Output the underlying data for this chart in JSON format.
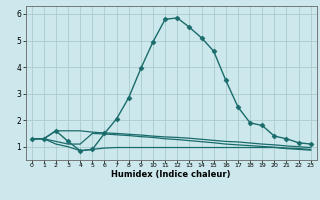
{
  "title": "",
  "xlabel": "Humidex (Indice chaleur)",
  "ylabel": "",
  "bg_color": "#cce8ec",
  "grid_color": "#aacccc",
  "line_color": "#1a6b6b",
  "xlim": [
    -0.5,
    23.5
  ],
  "ylim": [
    0.5,
    6.3
  ],
  "x_ticks": [
    0,
    1,
    2,
    3,
    4,
    5,
    6,
    7,
    8,
    9,
    10,
    11,
    12,
    13,
    14,
    15,
    16,
    17,
    18,
    19,
    20,
    21,
    22,
    23
  ],
  "y_ticks": [
    1,
    2,
    3,
    4,
    5,
    6
  ],
  "series": [
    {
      "x": [
        0,
        1,
        2,
        3,
        4,
        5,
        6,
        7,
        8,
        9,
        10,
        11,
        12,
        13,
        14,
        15,
        16,
        17,
        18,
        19,
        20,
        21,
        22,
        23
      ],
      "y": [
        1.3,
        1.3,
        1.6,
        1.2,
        0.85,
        0.9,
        1.5,
        2.05,
        2.85,
        3.95,
        4.95,
        5.8,
        5.85,
        5.5,
        5.1,
        4.6,
        3.5,
        2.5,
        1.9,
        1.8,
        1.4,
        1.3,
        1.15,
        1.1
      ],
      "marker": "D",
      "markersize": 2.5,
      "linewidth": 1.0,
      "linestyle": "-"
    },
    {
      "x": [
        0,
        1,
        2,
        3,
        4,
        5,
        6,
        7,
        8,
        9,
        10,
        11,
        12,
        13,
        14,
        15,
        16,
        17,
        18,
        19,
        20,
        21,
        22,
        23
      ],
      "y": [
        1.3,
        1.3,
        1.6,
        1.6,
        1.6,
        1.55,
        1.52,
        1.5,
        1.47,
        1.44,
        1.4,
        1.37,
        1.35,
        1.32,
        1.28,
        1.24,
        1.2,
        1.18,
        1.14,
        1.1,
        1.07,
        1.03,
        1.0,
        0.97
      ],
      "marker": null,
      "markersize": 0,
      "linewidth": 0.9,
      "linestyle": "-"
    },
    {
      "x": [
        0,
        1,
        2,
        3,
        4,
        5,
        6,
        7,
        8,
        9,
        10,
        11,
        12,
        13,
        14,
        15,
        16,
        17,
        18,
        19,
        20,
        21,
        22,
        23
      ],
      "y": [
        1.3,
        1.3,
        1.2,
        1.1,
        1.1,
        1.5,
        1.48,
        1.45,
        1.42,
        1.38,
        1.35,
        1.3,
        1.27,
        1.23,
        1.19,
        1.15,
        1.1,
        1.07,
        1.04,
        1.01,
        0.98,
        0.95,
        0.93,
        0.9
      ],
      "marker": null,
      "markersize": 0,
      "linewidth": 0.9,
      "linestyle": "-"
    },
    {
      "x": [
        0,
        1,
        2,
        3,
        4,
        5,
        6,
        7,
        8,
        9,
        10,
        11,
        12,
        13,
        14,
        15,
        16,
        17,
        18,
        19,
        20,
        21,
        22,
        23
      ],
      "y": [
        1.3,
        1.3,
        1.1,
        1.0,
        0.85,
        0.9,
        0.95,
        0.97,
        0.97,
        0.97,
        0.97,
        0.97,
        0.97,
        0.97,
        0.97,
        0.97,
        0.97,
        0.97,
        0.97,
        0.97,
        0.97,
        0.93,
        0.9,
        0.87
      ],
      "marker": null,
      "markersize": 0,
      "linewidth": 0.9,
      "linestyle": "-"
    }
  ]
}
